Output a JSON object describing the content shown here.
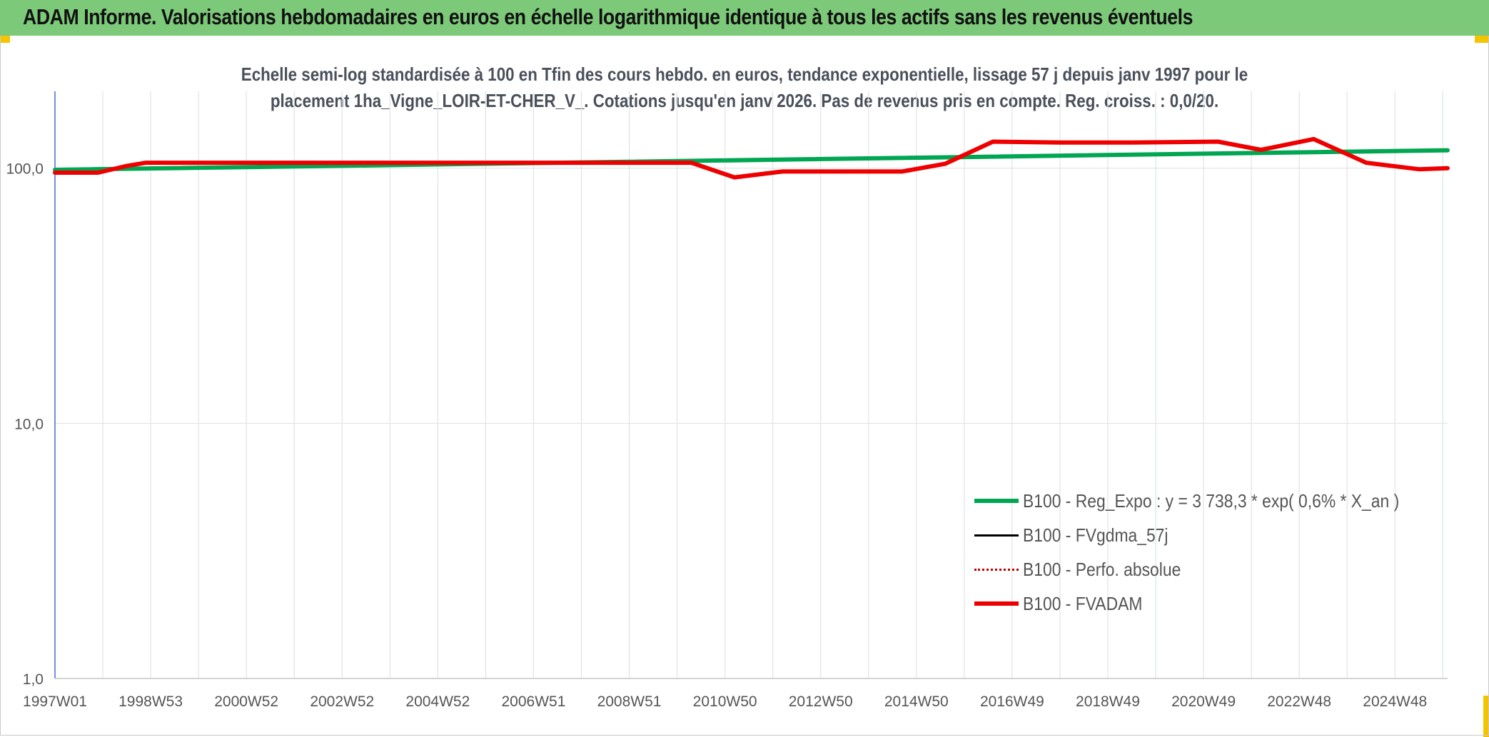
{
  "banner": {
    "title": "ADAM Informe. Valorisations hebdomadaires en euros en échelle logarithmique identique à tous les actifs sans les revenus éventuels"
  },
  "colors": {
    "banner": "#7dc97a",
    "corner": "#f5c400",
    "trend": "#00a651",
    "fvgdma": "#000000",
    "perfo": "#c00000",
    "fvadam": "#ee0000"
  },
  "chart_data": {
    "type": "line",
    "title_line1": "Echelle semi-log standardisée à 100 en Tfin des cours hebdo. en euros, tendance exponentielle, lissage 57 j depuis janv 1997 pour le",
    "title_line2": "placement 1ha_Vigne_LOIR-ET-CHER_V_. Cotations jusqu'en janv 2026. Pas de revenus pris en compte. Reg. croiss. : 0,0/20.",
    "y_scale": "log",
    "ylim": [
      1,
      200
    ],
    "y_ticks": [
      {
        "value": 1,
        "label": "1,0"
      },
      {
        "value": 10,
        "label": "10,0"
      },
      {
        "value": 100,
        "label": "100,0"
      }
    ],
    "xlim": [
      1997.0,
      2026.1
    ],
    "x_ticks": [
      {
        "value": 1997.0,
        "label": "1997W01"
      },
      {
        "value": 1999.0,
        "label": "1998W53"
      },
      {
        "value": 2001.0,
        "label": "2000W52"
      },
      {
        "value": 2003.0,
        "label": "2002W52"
      },
      {
        "value": 2005.0,
        "label": "2004W52"
      },
      {
        "value": 2007.0,
        "label": "2006W51"
      },
      {
        "value": 2009.0,
        "label": "2008W51"
      },
      {
        "value": 2011.0,
        "label": "2010W50"
      },
      {
        "value": 2013.0,
        "label": "2012W50"
      },
      {
        "value": 2015.0,
        "label": "2014W50"
      },
      {
        "value": 2017.0,
        "label": "2016W49"
      },
      {
        "value": 2019.0,
        "label": "2018W49"
      },
      {
        "value": 2021.0,
        "label": "2020W49"
      },
      {
        "value": 2023.0,
        "label": "2022W48"
      },
      {
        "value": 2025.0,
        "label": "2024W48"
      }
    ],
    "grid": true,
    "legend_position": "bottom-right",
    "series": [
      {
        "name": "B100 - Reg_Expo : y = 3 738,3 * exp( 0,6% *  X_an )",
        "key": "trend",
        "style": "solid",
        "points": [
          [
            1997.0,
            98.5
          ],
          [
            2026.1,
            117.5
          ]
        ]
      },
      {
        "name": "B100 - FVgdma_57j",
        "key": "fvgdma",
        "style": "solid",
        "points": []
      },
      {
        "name": "B100 - Perfo. absolue",
        "key": "perfo",
        "style": "dotted",
        "points": []
      },
      {
        "name": "B100 - FVADAM",
        "key": "fvadam",
        "style": "solid",
        "points": [
          [
            1997.0,
            96.0
          ],
          [
            1997.9,
            96.0
          ],
          [
            1998.5,
            102.0
          ],
          [
            1998.9,
            105.0
          ],
          [
            2000.0,
            105.0
          ],
          [
            2003.0,
            105.0
          ],
          [
            2005.5,
            105.0
          ],
          [
            2008.0,
            105.0
          ],
          [
            2010.0,
            105.0
          ],
          [
            2010.3,
            105.0
          ],
          [
            2011.2,
            92.0
          ],
          [
            2012.2,
            97.0
          ],
          [
            2013.0,
            97.0
          ],
          [
            2014.0,
            97.0
          ],
          [
            2014.7,
            97.0
          ],
          [
            2015.6,
            104.0
          ],
          [
            2016.6,
            127.0
          ],
          [
            2018.0,
            126.0
          ],
          [
            2019.5,
            126.0
          ],
          [
            2021.3,
            127.0
          ],
          [
            2022.2,
            118.0
          ],
          [
            2023.3,
            130.0
          ],
          [
            2024.4,
            105.0
          ],
          [
            2025.5,
            99.0
          ],
          [
            2026.1,
            100.0
          ]
        ]
      }
    ]
  }
}
